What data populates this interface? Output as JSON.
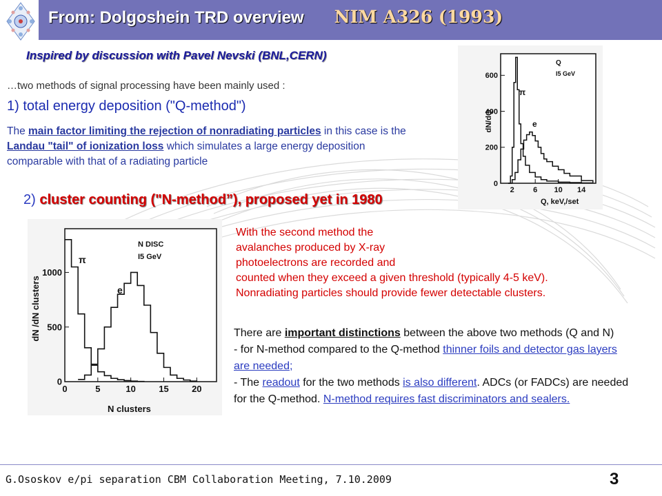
{
  "header": {
    "title": "From: Dolgoshein TRD overview",
    "reference": "NIM A326 (1993)"
  },
  "subtitle": "Inspired by discussion with Pavel Nevski (BNL,CERN)",
  "intro": "…two methods of signal processing have been mainly used :",
  "method1": {
    "heading": "1) total energy deposition (\"Q-method\")",
    "text_a": "The ",
    "text_b": "main factor limiting the rejection of nonradiating particles",
    "text_c": " in this case is the ",
    "text_d": "Landau \"tail\" of ionization loss",
    "text_e": " which simulates a large energy deposition comparable with that of a radiating particle"
  },
  "method2": {
    "number": "2) ",
    "heading": "cluster counting (\"N-method”), proposed yet in 1980"
  },
  "method2_desc": [
    "With the second method the",
    "avalanches produced by X-ray",
    "photoelectrons are recorded and",
    "counted when they exceed a given threshold (typically 4-5 keV).",
    "Nonradiating particles should provide fewer detectable clusters."
  ],
  "distinctions": {
    "p1_a": "There are ",
    "p1_b": "important distinctions",
    "p1_c": " between the above two methods (Q and N)",
    "p2_a": "- for N-method compared to the Q-method ",
    "p2_b": "thinner foils and detector gas layers are needed;",
    "p3_a": "- The ",
    "p3_b": "readout",
    "p3_c": " for the two methods ",
    "p3_d": "is also different",
    "p3_e": ". ADCs (or FADCs) are needed for the Q-method. ",
    "p3_f": "N-method requires fast discriminators and sealers."
  },
  "footer": {
    "text": "G.Ososkov   e/pi separation        CBM Collaboration Meeting, 7.10.2009",
    "page": "3"
  },
  "chart_data": [
    {
      "type": "line",
      "title": "",
      "annotations": [
        "Q",
        "I5 GeV",
        "π",
        "e"
      ],
      "xlabel": "Q, keV,/set",
      "ylabel": "dN/dQ",
      "xticks": [
        "2",
        "6",
        "10",
        "14"
      ],
      "yticks": [
        "0",
        "200",
        "400",
        "600"
      ],
      "xlim": [
        0,
        16.5
      ],
      "ylim": [
        0,
        720
      ],
      "series": [
        {
          "x": [
            1.3,
            1.7,
            2.0,
            2.3,
            2.6,
            2.9,
            3.2,
            3.5,
            3.9,
            4.3,
            5.0,
            6.0,
            7.0,
            8.0,
            10.0,
            12.0,
            14.0,
            16.0
          ],
          "y": [
            0,
            40,
            200,
            560,
            700,
            520,
            330,
            220,
            150,
            100,
            60,
            35,
            20,
            12,
            6,
            4,
            2,
            1
          ]
        },
        {
          "x": [
            1.3,
            2.0,
            2.5,
            3.0,
            3.5,
            4.0,
            4.5,
            5.0,
            5.5,
            6.0,
            6.5,
            7.0,
            7.5,
            8.0,
            9.0,
            10.0,
            11.0,
            12.0,
            14.0,
            16.0
          ],
          "y": [
            0,
            20,
            60,
            130,
            190,
            240,
            270,
            285,
            265,
            235,
            200,
            165,
            135,
            120,
            95,
            75,
            55,
            40,
            15,
            5
          ]
        }
      ]
    },
    {
      "type": "line",
      "title": "",
      "annotations": [
        "N  DISC",
        "I5  GeV",
        "π",
        "e"
      ],
      "xlabel": "N  clusters",
      "ylabel": "dN /dN clusters",
      "xticks": [
        "0",
        "5",
        "10",
        "15",
        "20"
      ],
      "yticks": [
        "0",
        "500",
        "1000"
      ],
      "xlim": [
        0,
        23
      ],
      "ylim": [
        0,
        1400
      ],
      "series": [
        {
          "x": [
            0,
            1,
            2,
            3,
            4,
            5,
            6,
            7,
            8,
            9,
            10,
            11,
            12
          ],
          "y": [
            1300,
            1050,
            620,
            310,
            150,
            90,
            55,
            30,
            18,
            10,
            5,
            2,
            0
          ]
        },
        {
          "x": [
            2,
            3,
            4,
            5,
            6,
            7,
            8,
            9,
            10,
            11,
            12,
            13,
            14,
            15,
            16,
            17,
            18,
            19,
            20
          ],
          "y": [
            20,
            60,
            160,
            300,
            500,
            680,
            800,
            900,
            1000,
            880,
            700,
            450,
            260,
            130,
            60,
            30,
            15,
            5,
            0
          ]
        }
      ]
    }
  ]
}
